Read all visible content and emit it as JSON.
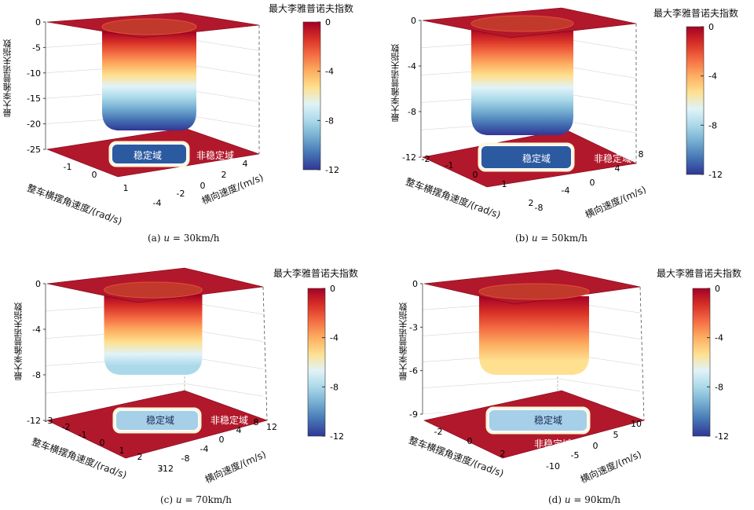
{
  "colorbar": {
    "title": "最大李雅普诺夫指数",
    "ticks": [
      "0",
      "-4",
      "-8",
      "-12"
    ],
    "colors": [
      "#a50026",
      "#d73027",
      "#f46d43",
      "#fdae61",
      "#fee090",
      "#e0f3f8",
      "#abd9e9",
      "#74add1",
      "#4575b4",
      "#313695"
    ]
  },
  "labels": {
    "zlabel": "最大李雅普诺夫指数",
    "xlabel": "整车横摆角速度/(rad/s)",
    "ylabel": "横向速度/(m/s)",
    "stable": "稳定域",
    "unstable": "非稳定域"
  },
  "chart_data": [
    {
      "type": "surface",
      "caption_prefix": "(a)",
      "caption_var": "u",
      "caption_value": " = 30km/h",
      "zticks": [
        "0",
        "-5",
        "-10",
        "-15",
        "-20",
        "-25"
      ],
      "xticks": [
        "-1",
        "0",
        "1"
      ],
      "yticks": [
        "-4",
        "-2",
        "0",
        "2",
        "4"
      ],
      "zlim": [
        -25,
        0
      ],
      "well_min": -21
    },
    {
      "type": "surface",
      "caption_prefix": "(b)",
      "caption_var": "u",
      "caption_value": " = 50km/h",
      "zticks": [
        "0",
        "-4",
        "-8",
        "-12"
      ],
      "xticks": [
        "-2",
        "-1",
        "0",
        "1",
        "2"
      ],
      "yticks": [
        "-8",
        "-4",
        "0",
        "4",
        "8"
      ],
      "zlim": [
        -14,
        0
      ],
      "well_min": -12
    },
    {
      "type": "surface",
      "caption_prefix": "(c)",
      "caption_var": "u",
      "caption_value": " = 70km/h",
      "zticks": [
        "0",
        "-4",
        "-8",
        "-12"
      ],
      "xticks": [
        "-3",
        "-2",
        "-1",
        "0",
        "1",
        "2",
        "3"
      ],
      "yticks": [
        "-12",
        "-8",
        "-4",
        "0",
        "4",
        "8",
        "12"
      ],
      "zlim": [
        -12,
        0
      ],
      "well_min": -9
    },
    {
      "type": "surface",
      "caption_prefix": "(d)",
      "caption_var": "u",
      "caption_value": " = 90km/h",
      "zticks": [
        "0",
        "-3",
        "-6",
        "-9"
      ],
      "xticks": [
        "-2",
        "0",
        "2"
      ],
      "yticks": [
        "-10",
        "-5",
        "0",
        "5",
        "10"
      ],
      "zlim": [
        -10,
        0
      ],
      "well_min": -6.5
    }
  ]
}
